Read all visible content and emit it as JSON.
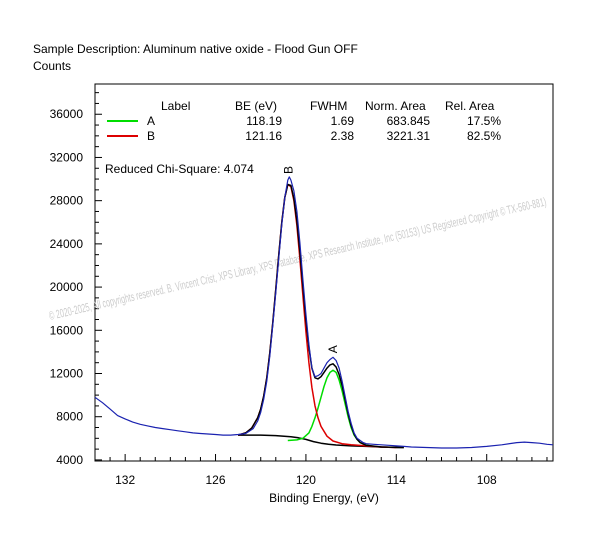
{
  "chart_data": {
    "type": "line",
    "title": "Sample Description:  Aluminum native oxide - Flood Gun OFF",
    "ylabel": "Counts",
    "xlabel": "Binding Energy, (eV)",
    "xlim": [
      134.0,
      103.6
    ],
    "ylim": [
      3900,
      38800
    ],
    "x_ticks": [
      132,
      126,
      120,
      114,
      108
    ],
    "x_tick_labels": [
      "132",
      "126",
      "120",
      "114",
      "108"
    ],
    "y_ticks": [
      4000,
      8000,
      12000,
      16000,
      20000,
      24000,
      28000,
      32000,
      36000
    ],
    "y_tick_labels": [
      "4000",
      "8000",
      "12000",
      "16000",
      "20000",
      "24000",
      "28000",
      "32000",
      "36000"
    ],
    "table": {
      "headers": [
        "Label",
        "BE (eV)",
        "FWHM",
        "Norm. Area",
        "Rel. Area"
      ],
      "rows": [
        {
          "label": "A",
          "color": "#00dd00",
          "be": "118.19",
          "fwhm": "1.69",
          "norm_area": "683.845",
          "rel_area": "17.5%"
        },
        {
          "label": "B",
          "color": "#dd0000",
          "be": "121.16",
          "fwhm": "2.38",
          "norm_area": "3221.31",
          "rel_area": "82.5%"
        }
      ]
    },
    "chi_square": "Reduced Chi-Square: 4.074",
    "peak_labels": [
      {
        "text": "B",
        "x": 121.16,
        "y": 30100
      },
      {
        "text": "A",
        "x": 118.19,
        "y": 13500
      }
    ],
    "watermark": "©  2020-2025,  All copyrights reserved.   B. Vincent Crist,  XPS Library, XPS Database,  XPS Research Institute, Inc (50153)   US Registered Copyright © TX-560-881)",
    "series": [
      {
        "name": "data",
        "color": "#1a22b0",
        "points": [
          [
            134.0,
            9800
          ],
          [
            133.5,
            9300
          ],
          [
            133.0,
            8700
          ],
          [
            132.5,
            8100
          ],
          [
            132.0,
            7800
          ],
          [
            131.5,
            7500
          ],
          [
            131.0,
            7300
          ],
          [
            130.5,
            7150
          ],
          [
            130.0,
            7000
          ],
          [
            129.5,
            6900
          ],
          [
            129.0,
            6800
          ],
          [
            128.5,
            6700
          ],
          [
            128.0,
            6600
          ],
          [
            127.5,
            6500
          ],
          [
            127.0,
            6450
          ],
          [
            126.5,
            6400
          ],
          [
            126.0,
            6350
          ],
          [
            125.5,
            6300
          ],
          [
            125.0,
            6300
          ],
          [
            124.5,
            6350
          ],
          [
            124.0,
            6450
          ],
          [
            123.5,
            6900
          ],
          [
            123.2,
            7600
          ],
          [
            123.0,
            8400
          ],
          [
            122.8,
            9600
          ],
          [
            122.6,
            11300
          ],
          [
            122.4,
            13600
          ],
          [
            122.2,
            16500
          ],
          [
            122.0,
            19500
          ],
          [
            121.8,
            22700
          ],
          [
            121.6,
            25800
          ],
          [
            121.4,
            28300
          ],
          [
            121.2,
            29900
          ],
          [
            121.1,
            30200
          ],
          [
            121.0,
            29900
          ],
          [
            120.8,
            28900
          ],
          [
            120.6,
            27000
          ],
          [
            120.4,
            24100
          ],
          [
            120.2,
            20700
          ],
          [
            120.0,
            17500
          ],
          [
            119.8,
            14700
          ],
          [
            119.6,
            12500
          ],
          [
            119.4,
            11700
          ],
          [
            119.2,
            11800
          ],
          [
            119.0,
            12000
          ],
          [
            118.8,
            12500
          ],
          [
            118.6,
            13000
          ],
          [
            118.4,
            13300
          ],
          [
            118.2,
            13500
          ],
          [
            118.0,
            13200
          ],
          [
            117.8,
            12500
          ],
          [
            117.6,
            11300
          ],
          [
            117.4,
            9900
          ],
          [
            117.2,
            8500
          ],
          [
            117.0,
            7400
          ],
          [
            116.8,
            6500
          ],
          [
            116.6,
            6000
          ],
          [
            116.4,
            5800
          ],
          [
            116.2,
            5600
          ],
          [
            116.0,
            5500
          ],
          [
            115.5,
            5450
          ],
          [
            115.0,
            5400
          ],
          [
            114.5,
            5350
          ],
          [
            114.0,
            5300
          ],
          [
            113.5,
            5250
          ],
          [
            113.0,
            5200
          ],
          [
            112.0,
            5150
          ],
          [
            111.0,
            5100
          ],
          [
            110.0,
            5100
          ],
          [
            109.0,
            5150
          ],
          [
            108.0,
            5250
          ],
          [
            107.0,
            5400
          ],
          [
            106.0,
            5600
          ],
          [
            105.5,
            5650
          ],
          [
            105.0,
            5600
          ],
          [
            104.5,
            5550
          ],
          [
            104.0,
            5450
          ],
          [
            103.6,
            5400
          ]
        ]
      },
      {
        "name": "envelope",
        "color": "#000000",
        "points": [
          [
            124.5,
            6300
          ],
          [
            124.0,
            6500
          ],
          [
            123.6,
            6950
          ],
          [
            123.2,
            7900
          ],
          [
            123.0,
            8700
          ],
          [
            122.8,
            9900
          ],
          [
            122.6,
            11600
          ],
          [
            122.4,
            13900
          ],
          [
            122.2,
            16700
          ],
          [
            122.0,
            19800
          ],
          [
            121.8,
            23000
          ],
          [
            121.6,
            26000
          ],
          [
            121.4,
            28300
          ],
          [
            121.2,
            29500
          ],
          [
            121.0,
            29400
          ],
          [
            120.8,
            28200
          ],
          [
            120.6,
            26100
          ],
          [
            120.4,
            23300
          ],
          [
            120.2,
            20100
          ],
          [
            120.0,
            17000
          ],
          [
            119.8,
            14400
          ],
          [
            119.6,
            12500
          ],
          [
            119.4,
            11600
          ],
          [
            119.2,
            11500
          ],
          [
            119.0,
            11700
          ],
          [
            118.8,
            12100
          ],
          [
            118.6,
            12500
          ],
          [
            118.4,
            12800
          ],
          [
            118.2,
            12900
          ],
          [
            118.0,
            12600
          ],
          [
            117.8,
            11900
          ],
          [
            117.6,
            10900
          ],
          [
            117.4,
            9600
          ],
          [
            117.2,
            8300
          ],
          [
            117.0,
            7200
          ],
          [
            116.8,
            6400
          ],
          [
            116.6,
            5900
          ],
          [
            116.4,
            5600
          ],
          [
            116.0,
            5350
          ],
          [
            115.0,
            5200
          ],
          [
            113.5,
            5150
          ]
        ]
      },
      {
        "name": "B",
        "color": "#dd0000",
        "points": [
          [
            124.5,
            6300
          ],
          [
            124.0,
            6500
          ],
          [
            123.6,
            6950
          ],
          [
            123.2,
            7900
          ],
          [
            123.0,
            8700
          ],
          [
            122.8,
            9900
          ],
          [
            122.6,
            11600
          ],
          [
            122.4,
            13900
          ],
          [
            122.2,
            16700
          ],
          [
            122.0,
            19800
          ],
          [
            121.8,
            23000
          ],
          [
            121.6,
            26000
          ],
          [
            121.4,
            28300
          ],
          [
            121.2,
            29500
          ],
          [
            121.0,
            29300
          ],
          [
            120.8,
            28000
          ],
          [
            120.6,
            25700
          ],
          [
            120.4,
            22600
          ],
          [
            120.2,
            19200
          ],
          [
            120.0,
            15900
          ],
          [
            119.8,
            13000
          ],
          [
            119.6,
            10700
          ],
          [
            119.4,
            9000
          ],
          [
            119.2,
            7900
          ],
          [
            119.0,
            7100
          ],
          [
            118.6,
            6200
          ],
          [
            118.2,
            5750
          ],
          [
            117.6,
            5500
          ],
          [
            117.0,
            5400
          ],
          [
            116.0,
            5300
          ],
          [
            115.0,
            5200
          ],
          [
            114.0,
            5150
          ]
        ]
      },
      {
        "name": "A",
        "color": "#00dd00",
        "points": [
          [
            121.2,
            5800
          ],
          [
            120.6,
            5850
          ],
          [
            120.2,
            6000
          ],
          [
            119.8,
            6500
          ],
          [
            119.6,
            7100
          ],
          [
            119.4,
            7900
          ],
          [
            119.2,
            8800
          ],
          [
            119.0,
            9800
          ],
          [
            118.8,
            10800
          ],
          [
            118.6,
            11600
          ],
          [
            118.4,
            12100
          ],
          [
            118.2,
            12300
          ],
          [
            118.0,
            12100
          ],
          [
            117.8,
            11400
          ],
          [
            117.6,
            10400
          ],
          [
            117.4,
            9200
          ],
          [
            117.2,
            8000
          ],
          [
            117.0,
            7000
          ],
          [
            116.8,
            6300
          ],
          [
            116.6,
            5900
          ],
          [
            116.4,
            5600
          ],
          [
            116.0,
            5350
          ],
          [
            115.5,
            5250
          ]
        ]
      },
      {
        "name": "background",
        "color": "#000000",
        "points": [
          [
            124.5,
            6300
          ],
          [
            124.0,
            6300
          ],
          [
            123.0,
            6300
          ],
          [
            122.0,
            6250
          ],
          [
            121.0,
            6150
          ],
          [
            120.5,
            6050
          ],
          [
            120.0,
            5900
          ],
          [
            119.5,
            5700
          ],
          [
            119.0,
            5550
          ],
          [
            118.5,
            5450
          ],
          [
            118.0,
            5380
          ],
          [
            117.0,
            5300
          ],
          [
            116.0,
            5250
          ],
          [
            115.0,
            5200
          ],
          [
            114.0,
            5150
          ],
          [
            113.5,
            5150
          ]
        ]
      }
    ]
  }
}
